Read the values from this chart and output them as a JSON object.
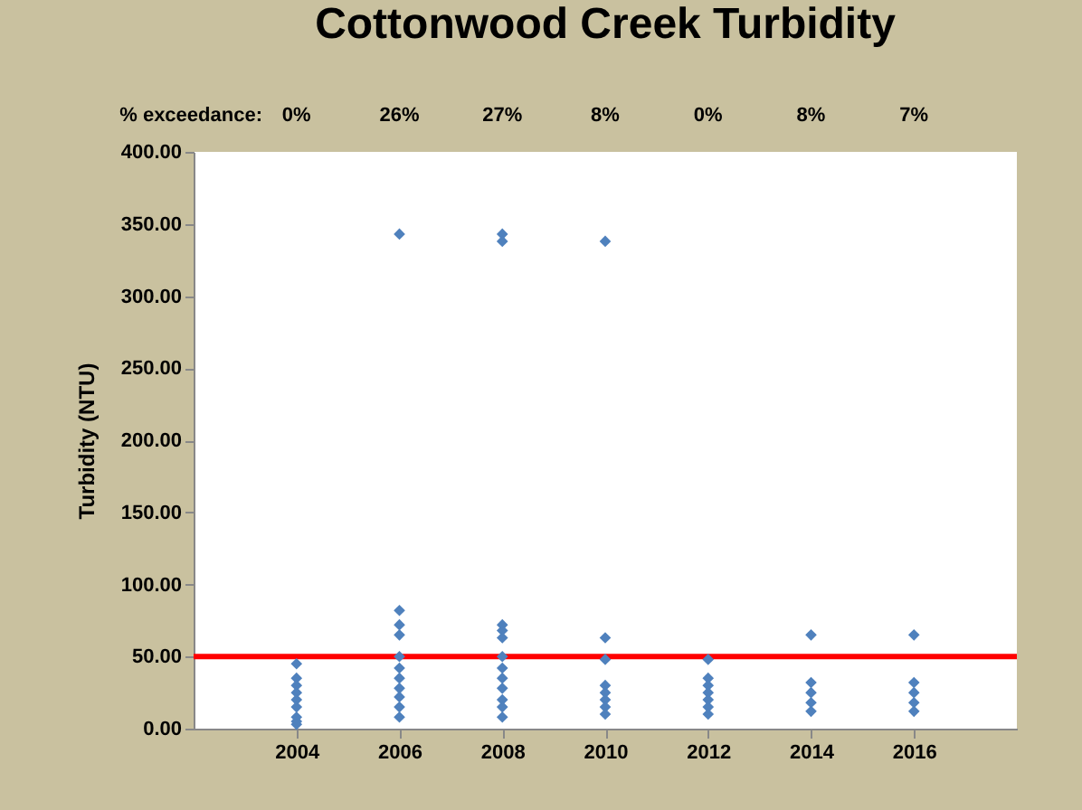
{
  "chart_data": {
    "type": "scatter",
    "title": "Cottonwood Creek Turbidity",
    "ylabel": "Turbidity (NTU)",
    "series": [
      {
        "color": "#4f81bd",
        "x": [
          2004,
          2004,
          2004,
          2004,
          2004,
          2004,
          2004,
          2004,
          2004,
          2006,
          2006,
          2006,
          2006,
          2006,
          2006,
          2006,
          2006,
          2006,
          2006,
          2006,
          2008,
          2008,
          2008,
          2008,
          2008,
          2008,
          2008,
          2008,
          2008,
          2008,
          2008,
          2008,
          2010,
          2010,
          2010,
          2010,
          2010,
          2010,
          2010,
          2010,
          2012,
          2012,
          2012,
          2012,
          2012,
          2012,
          2012,
          2014,
          2014,
          2014,
          2014,
          2014,
          2016,
          2016,
          2016,
          2016,
          2016
        ],
        "values": [
          45,
          35,
          30,
          25,
          20,
          15,
          8,
          5,
          3,
          343,
          82,
          72,
          65,
          50,
          42,
          35,
          28,
          22,
          15,
          8,
          343,
          338,
          72,
          68,
          63,
          50,
          42,
          35,
          28,
          20,
          15,
          8,
          338,
          63,
          48,
          30,
          25,
          20,
          15,
          10,
          48,
          35,
          30,
          25,
          20,
          15,
          10,
          65,
          32,
          25,
          18,
          12,
          65,
          32,
          25,
          18,
          12
        ]
      }
    ],
    "marker": "diamond",
    "xlim": [
      2002,
      2018
    ],
    "xticks": [
      2004,
      2006,
      2008,
      2010,
      2012,
      2014,
      2016
    ],
    "ylim": [
      0,
      400
    ],
    "yticks": [
      {
        "value": 0,
        "label": "0.00"
      },
      {
        "value": 50,
        "label": "50.00"
      },
      {
        "value": 100,
        "label": "100.00"
      },
      {
        "value": 150,
        "label": "150.00"
      },
      {
        "value": 200,
        "label": "200.00"
      },
      {
        "value": 250,
        "label": "250.00"
      },
      {
        "value": 300,
        "label": "300.00"
      },
      {
        "value": 350,
        "label": "350.00"
      },
      {
        "value": 400,
        "label": "400.00"
      }
    ],
    "ref_lines": [
      {
        "axis": "y",
        "value": 50,
        "color": "#ff0000"
      }
    ],
    "annotations": [
      "% exceedance:",
      "0%",
      "26%",
      "27%",
      "8%",
      "0%",
      "8%",
      "7%"
    ],
    "grid": false
  }
}
